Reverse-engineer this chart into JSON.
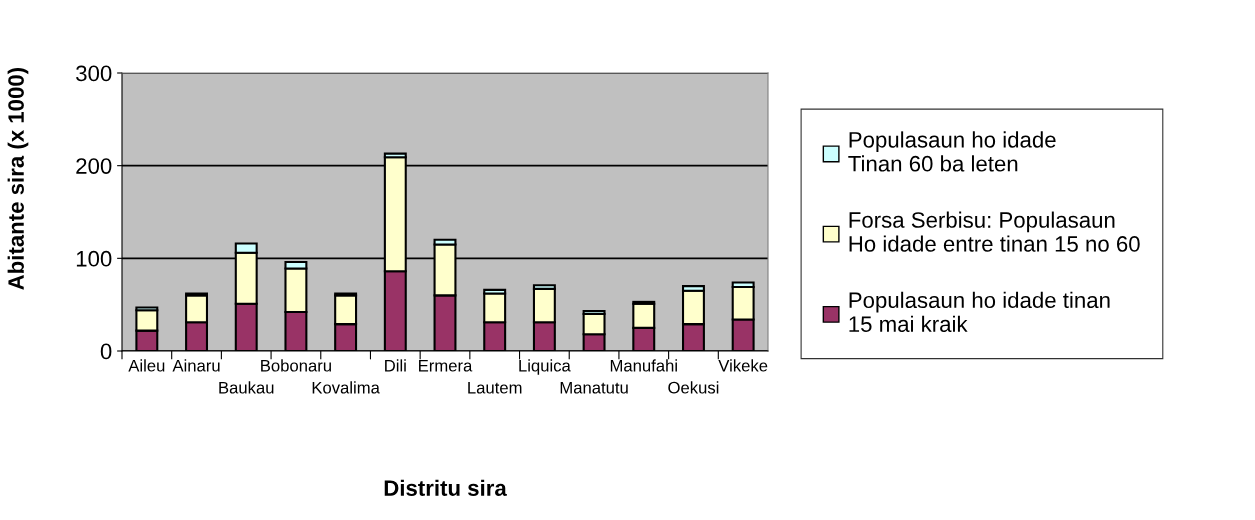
{
  "chart_data": {
    "type": "bar",
    "stacked": true,
    "xlabel": "Distritu sira",
    "ylabel": "Abitante sira (x 1000)",
    "categories": [
      "Aileu",
      "Ainaru",
      "Baukau",
      "Bobonaru",
      "Kovalima",
      "Dili",
      "Ermera",
      "Lautem",
      "Liquica",
      "Manatutu",
      "Manufahi",
      "Oekusi",
      "Vikeke"
    ],
    "series": [
      {
        "name": "Populasaun ho idade tinan\n15 mai kraik",
        "color": "#993366",
        "values": [
          22,
          31,
          51,
          42,
          29,
          86,
          60,
          31,
          31,
          18,
          25,
          29,
          34
        ]
      },
      {
        "name": "Forsa Serbisu: Populasaun\nHo idade entre tinan 15 no 60",
        "color": "#ffffcc",
        "values": [
          22,
          29,
          55,
          47,
          31,
          123,
          55,
          31,
          36,
          22,
          26,
          36,
          35
        ]
      },
      {
        "name": "Populasaun ho idade\nTinan 60 ba leten",
        "color": "#ccffff",
        "values": [
          3,
          2,
          10,
          7,
          2,
          4,
          5,
          4,
          4,
          3,
          2,
          5,
          5
        ]
      }
    ],
    "ylim": [
      0,
      300
    ],
    "yticks": [
      0,
      100,
      200,
      300
    ],
    "grid": "y",
    "legend": "right"
  }
}
